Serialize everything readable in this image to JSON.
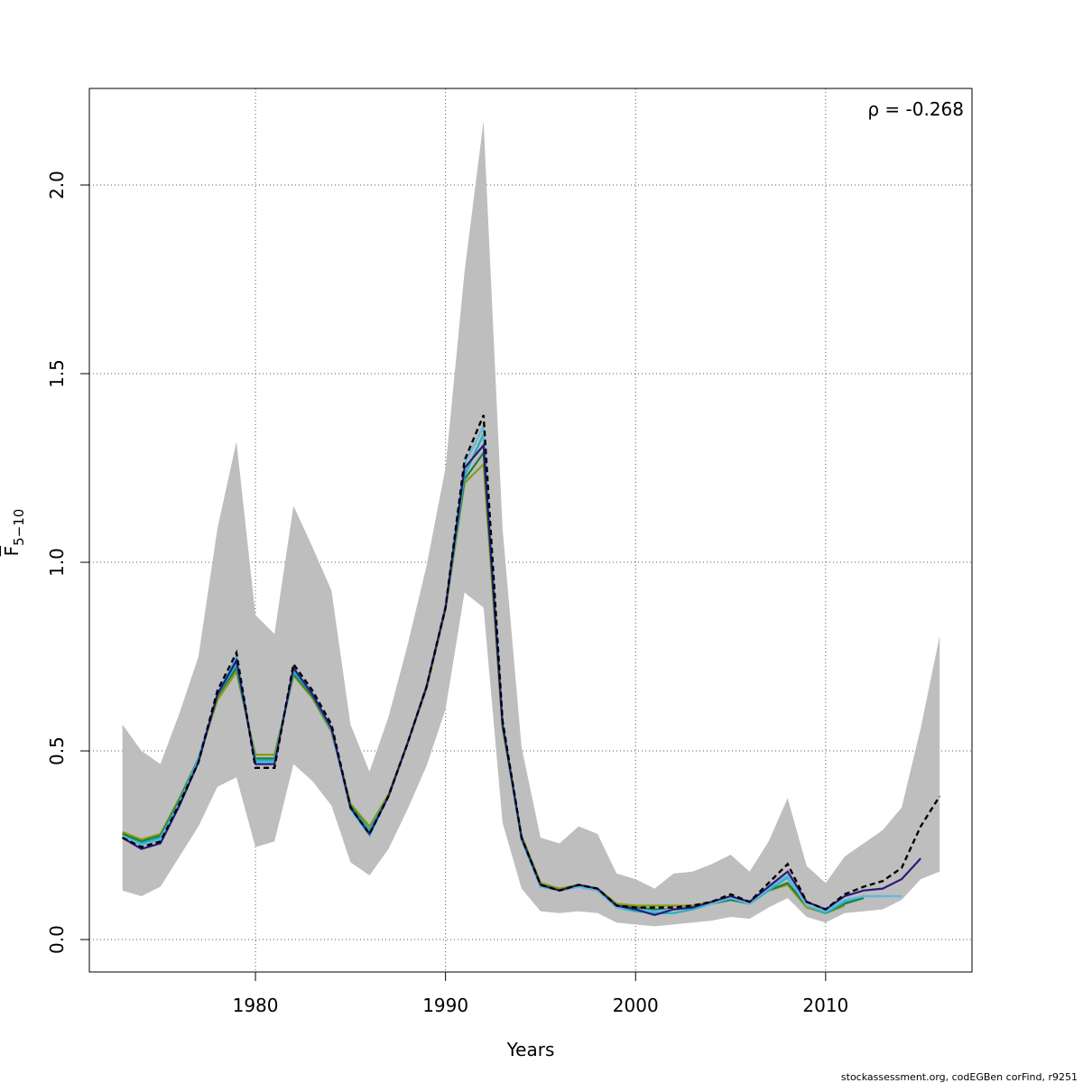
{
  "chart_data": {
    "type": "line",
    "xlabel": "Years",
    "ylabel": {
      "text": "F",
      "subscript": "5−10"
    },
    "annotation": "ρ = -0.268",
    "footer": "stockassessment.org, codEGBen corFind, r9251",
    "x": [
      1973,
      1974,
      1975,
      1976,
      1977,
      1978,
      1979,
      1980,
      1981,
      1982,
      1983,
      1984,
      1985,
      1986,
      1987,
      1988,
      1989,
      1990,
      1991,
      1992,
      1993,
      1994,
      1995,
      1996,
      1997,
      1998,
      1999,
      2000,
      2001,
      2002,
      2003,
      2004,
      2005,
      2006,
      2007,
      2008,
      2009,
      2010,
      2011,
      2012,
      2013,
      2014,
      2015,
      2016
    ],
    "band": {
      "color": "#bebebe",
      "upper": [
        0.57,
        0.5,
        0.465,
        0.6,
        0.75,
        1.09,
        1.32,
        0.86,
        0.81,
        1.15,
        1.04,
        0.925,
        0.57,
        0.445,
        0.59,
        0.78,
        0.99,
        1.25,
        1.77,
        2.17,
        1.09,
        0.51,
        0.27,
        0.255,
        0.3,
        0.28,
        0.175,
        0.16,
        0.135,
        0.175,
        0.18,
        0.2,
        0.225,
        0.18,
        0.26,
        0.375,
        0.195,
        0.15,
        0.22,
        0.255,
        0.29,
        0.35,
        0.56,
        0.805
      ],
      "lower": [
        0.13,
        0.115,
        0.14,
        0.22,
        0.3,
        0.405,
        0.43,
        0.245,
        0.26,
        0.465,
        0.42,
        0.355,
        0.205,
        0.17,
        0.24,
        0.345,
        0.46,
        0.61,
        0.92,
        0.88,
        0.31,
        0.135,
        0.075,
        0.07,
        0.075,
        0.07,
        0.045,
        0.04,
        0.035,
        0.04,
        0.045,
        0.05,
        0.06,
        0.055,
        0.085,
        0.11,
        0.06,
        0.045,
        0.07,
        0.075,
        0.08,
        0.105,
        0.16,
        0.18
      ]
    },
    "series": [
      {
        "color": "#8a9a10",
        "values": [
          0.285,
          0.265,
          0.28,
          0.375,
          0.48,
          0.635,
          0.71,
          0.49,
          0.49,
          0.7,
          0.64,
          0.55,
          0.36,
          0.3,
          0.385,
          0.52,
          0.665,
          0.875,
          1.21,
          1.26,
          0.56,
          0.275,
          0.15,
          0.135,
          0.145,
          0.135,
          0.095,
          0.09,
          0.09,
          0.09,
          0.09,
          0.1,
          0.11,
          0.1,
          0.13,
          0.145,
          0.085,
          0.07,
          0.09,
          null,
          null,
          null,
          null,
          null
        ]
      },
      {
        "color": "#1a7f3f",
        "values": [
          0.28,
          0.26,
          0.275,
          0.37,
          0.48,
          0.645,
          0.72,
          0.48,
          0.48,
          0.705,
          0.645,
          0.555,
          0.355,
          0.29,
          0.38,
          0.52,
          0.67,
          0.88,
          1.22,
          1.29,
          0.57,
          0.27,
          0.145,
          0.13,
          0.14,
          0.13,
          0.09,
          0.085,
          0.08,
          0.08,
          0.085,
          0.095,
          0.105,
          0.095,
          0.13,
          0.15,
          0.09,
          0.07,
          0.095,
          0.11,
          null,
          null,
          null,
          null
        ]
      },
      {
        "color": "#20b0c0",
        "values": [
          0.275,
          0.255,
          0.27,
          0.365,
          0.48,
          0.65,
          0.73,
          0.475,
          0.475,
          0.71,
          0.65,
          0.555,
          0.35,
          0.29,
          0.38,
          0.52,
          0.67,
          0.88,
          1.23,
          1.34,
          0.57,
          0.265,
          0.14,
          0.13,
          0.14,
          0.13,
          0.085,
          0.075,
          0.07,
          0.07,
          0.08,
          0.095,
          0.11,
          0.095,
          0.13,
          0.165,
          0.09,
          0.07,
          0.1,
          0.115,
          0.115,
          null,
          null,
          null
        ]
      },
      {
        "color": "#63b8e0",
        "values": [
          0.275,
          0.25,
          0.265,
          0.36,
          0.475,
          0.655,
          0.75,
          0.47,
          0.47,
          0.72,
          0.655,
          0.56,
          0.345,
          0.275,
          0.38,
          0.52,
          0.67,
          0.88,
          1.26,
          1.36,
          0.58,
          0.27,
          0.14,
          0.13,
          0.14,
          0.13,
          0.085,
          0.08,
          0.075,
          0.08,
          0.085,
          0.095,
          0.11,
          0.095,
          0.135,
          0.17,
          0.09,
          0.075,
          0.105,
          0.115,
          0.115,
          0.115,
          null,
          null
        ]
      },
      {
        "color": "#2a1a7a",
        "values": [
          0.27,
          0.24,
          0.255,
          0.355,
          0.47,
          0.65,
          0.74,
          0.465,
          0.465,
          0.72,
          0.65,
          0.56,
          0.35,
          0.28,
          0.38,
          0.52,
          0.67,
          0.88,
          1.25,
          1.31,
          0.57,
          0.27,
          0.145,
          0.13,
          0.145,
          0.135,
          0.09,
          0.08,
          0.065,
          0.08,
          0.085,
          0.1,
          0.115,
          0.1,
          0.14,
          0.18,
          0.1,
          0.08,
          0.115,
          0.13,
          0.135,
          0.16,
          0.215,
          null
        ]
      },
      {
        "color": "#000000",
        "dashed": true,
        "values": [
          0.27,
          0.245,
          0.26,
          0.36,
          0.47,
          0.66,
          0.76,
          0.455,
          0.455,
          0.73,
          0.66,
          0.57,
          0.35,
          0.28,
          0.38,
          0.52,
          0.67,
          0.88,
          1.27,
          1.39,
          0.58,
          0.27,
          0.145,
          0.13,
          0.145,
          0.135,
          0.09,
          0.085,
          0.085,
          0.085,
          0.09,
          0.1,
          0.12,
          0.1,
          0.15,
          0.2,
          0.1,
          0.08,
          0.12,
          0.14,
          0.155,
          0.19,
          0.3,
          0.38
        ]
      }
    ],
    "xlim": [
      1971.26,
      2017.7
    ],
    "ylim": [
      -0.086,
      2.256
    ],
    "xticks": [
      1980,
      1990,
      2000,
      2010
    ],
    "yticks": [
      {
        "value": 0,
        "label": "0.0"
      },
      {
        "value": 0.5,
        "label": "0.5"
      },
      {
        "value": 1,
        "label": "1.0"
      },
      {
        "value": 1.5,
        "label": "1.5"
      },
      {
        "value": 2,
        "label": "2.0"
      }
    ],
    "grid": true
  }
}
